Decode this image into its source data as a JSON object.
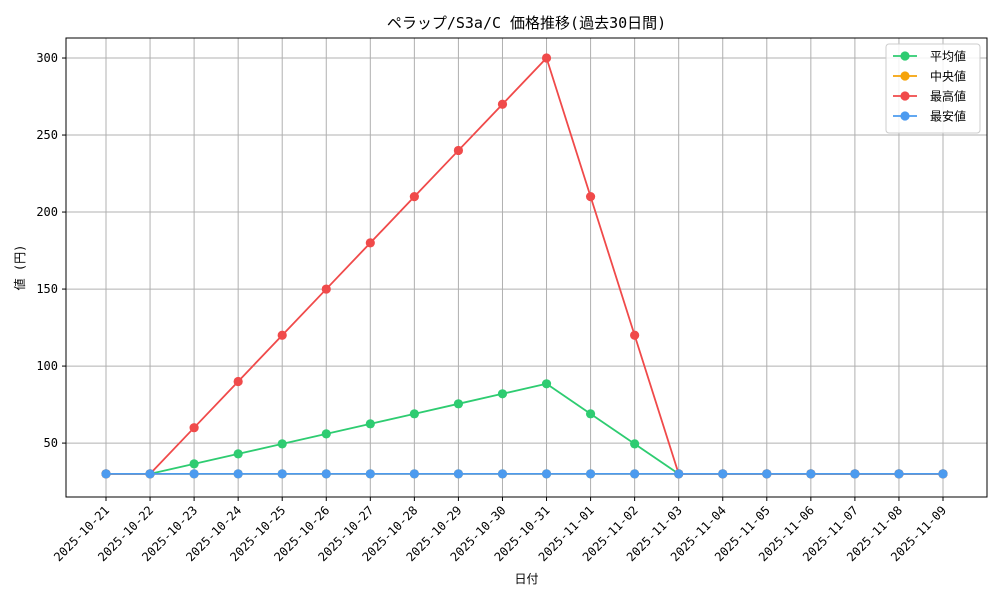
{
  "chart_data": {
    "type": "line",
    "title": "ペラップ/S3a/C 価格推移(過去30日間)",
    "xlabel": "日付",
    "ylabel": "値 (円)",
    "ylim": [
      15,
      313
    ],
    "yticks": [
      50,
      100,
      150,
      200,
      250,
      300
    ],
    "grid": true,
    "legend_position": "top-right",
    "categories": [
      "2025-10-21",
      "2025-10-22",
      "2025-10-23",
      "2025-10-24",
      "2025-10-25",
      "2025-10-26",
      "2025-10-27",
      "2025-10-28",
      "2025-10-29",
      "2025-10-30",
      "2025-10-31",
      "2025-11-01",
      "2025-11-02",
      "2025-11-03",
      "2025-11-04",
      "2025-11-05",
      "2025-11-06",
      "2025-11-07",
      "2025-11-08",
      "2025-11-09"
    ],
    "series": [
      {
        "name": "平均値",
        "color": "#2ecc71",
        "values": [
          30,
          30,
          36.5,
          43,
          49.5,
          56,
          62.5,
          69,
          75.5,
          82,
          88.5,
          69,
          49.5,
          30,
          30,
          30,
          30,
          30,
          30,
          30
        ]
      },
      {
        "name": "中央値",
        "color": "#f5a30a",
        "values": [
          30,
          30,
          30,
          30,
          30,
          30,
          30,
          30,
          30,
          30,
          30,
          30,
          30,
          30,
          30,
          30,
          30,
          30,
          30,
          30
        ]
      },
      {
        "name": "最高値",
        "color": "#f04a4a",
        "values": [
          30,
          30,
          60,
          90,
          120,
          150,
          180,
          210,
          240,
          270,
          300,
          210,
          120,
          30,
          30,
          30,
          30,
          30,
          30,
          30
        ]
      },
      {
        "name": "最安値",
        "color": "#4c9bef",
        "values": [
          30,
          30,
          30,
          30,
          30,
          30,
          30,
          30,
          30,
          30,
          30,
          30,
          30,
          30,
          30,
          30,
          30,
          30,
          30,
          30
        ]
      }
    ]
  }
}
